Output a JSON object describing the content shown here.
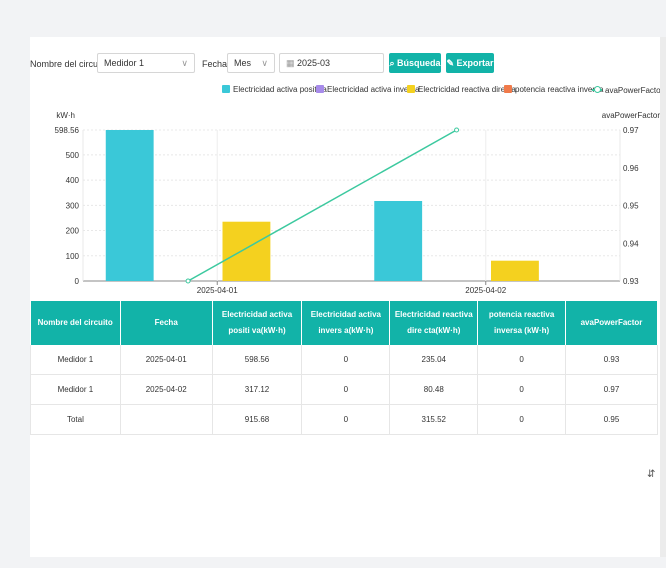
{
  "filters": {
    "circuit_label": "Nombre del circuito:",
    "circuit_value": "Medidor 1",
    "date_label": "Fecha:",
    "period_value": "Mes",
    "date_value": "2025-03",
    "search_button": "Búsqueda",
    "export_button": "Exportar"
  },
  "legend": [
    {
      "label": "Electricidad activa positiva",
      "color": "#3ac8d8"
    },
    {
      "label": "Electricidad activa inversa",
      "color": "#a78bea"
    },
    {
      "label": "Electricidad reactiva directa",
      "color": "#f4d11f"
    },
    {
      "label": "potencia reactiva inversa",
      "color": "#f07a4a"
    },
    {
      "label": "avaPowerFactor",
      "color": "#3cc99f"
    }
  ],
  "chart_data": {
    "type": "bar",
    "categories": [
      "2025-04-01",
      "2025-04-02"
    ],
    "series": [
      {
        "name": "Electricidad activa positiva",
        "values": [
          598.56,
          317.12
        ],
        "color": "#3ac8d8"
      },
      {
        "name": "Electricidad activa inversa",
        "values": [
          0,
          0
        ],
        "color": "#a78bea"
      },
      {
        "name": "Electricidad reactiva directa",
        "values": [
          235.04,
          80.48
        ],
        "color": "#f4d11f"
      },
      {
        "name": "potencia reactiva inversa",
        "values": [
          0,
          0
        ],
        "color": "#f07a4a"
      }
    ],
    "line_series": {
      "name": "avaPowerFactor",
      "values": [
        0.93,
        0.97
      ],
      "color": "#3cc99f"
    },
    "ylabel": "kW·h",
    "y2label": "avaPowerFactor",
    "ylim": [
      0,
      598.56
    ],
    "y_ticks": [
      "0",
      "100",
      "200",
      "300",
      "400",
      "500",
      "598.56"
    ],
    "y2lim": [
      0.93,
      0.97
    ],
    "y2_ticks": [
      "0.93",
      "0.94",
      "0.95",
      "0.96",
      "0.97"
    ]
  },
  "table": {
    "headers": [
      "Nombre del circuito",
      "Fecha",
      "Electricidad activa positi va(kW·h)",
      "Electricidad activa invers a(kW·h)",
      "Electricidad reactiva dire cta(kW·h)",
      "potencia reactiva inversa (kW·h)",
      "avaPowerFactor"
    ],
    "rows": [
      [
        "Medidor 1",
        "2025-04-01",
        "598.56",
        "0",
        "235.04",
        "0",
        "0.93"
      ],
      [
        "Medidor 1",
        "2025-04-02",
        "317.12",
        "0",
        "80.48",
        "0",
        "0.97"
      ],
      [
        "Total",
        "",
        "915.68",
        "0",
        "315.52",
        "0",
        "0.95"
      ]
    ]
  }
}
